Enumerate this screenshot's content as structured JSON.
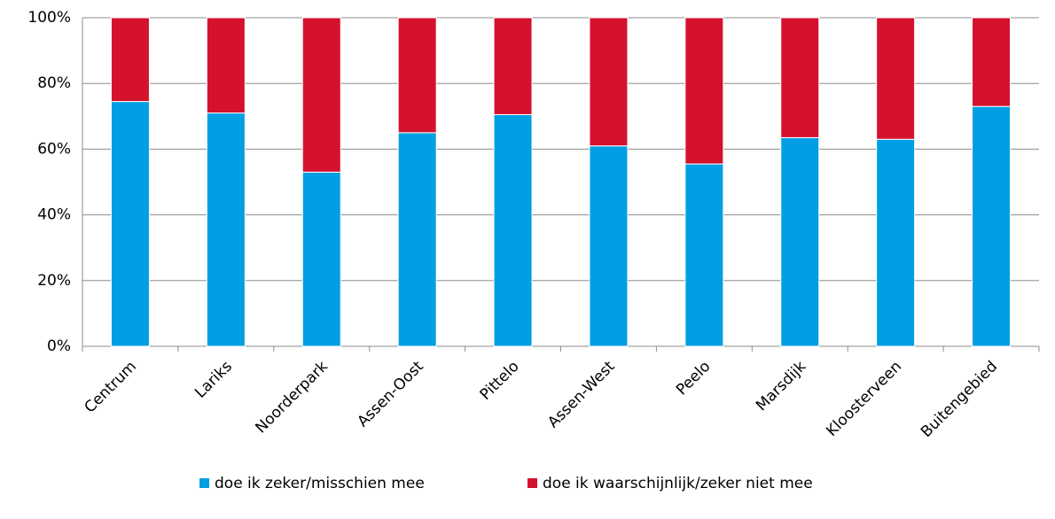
{
  "chart_data": {
    "type": "stacked_bar",
    "categories": [
      "Centrum",
      "Lariks",
      "Noorderpark",
      "Assen-Oost",
      "Pittelo",
      "Assen-West",
      "Peelo",
      "Marsdijk",
      "Kloosterveen",
      "Buitengebied"
    ],
    "series": [
      {
        "name": "doe ik zeker/misschien mee",
        "color": "#009fe3",
        "values": [
          74.5,
          71,
          53,
          65,
          70.5,
          61,
          55.5,
          63.5,
          63,
          73
        ]
      },
      {
        "name": "doe ik waarschijnlijk/zeker niet mee",
        "color": "#d4122e",
        "values": [
          25.5,
          29,
          47,
          35,
          29.5,
          39,
          44.5,
          36.5,
          37,
          27
        ]
      }
    ],
    "ylim": [
      0,
      100
    ],
    "yticks": [
      {
        "value": 0,
        "label": "0%"
      },
      {
        "value": 20,
        "label": "20%"
      },
      {
        "value": 40,
        "label": "40%"
      },
      {
        "value": 60,
        "label": "60%"
      },
      {
        "value": 80,
        "label": "80%"
      },
      {
        "value": 100,
        "label": "100%"
      }
    ],
    "grid": true,
    "legend": "bottom"
  }
}
